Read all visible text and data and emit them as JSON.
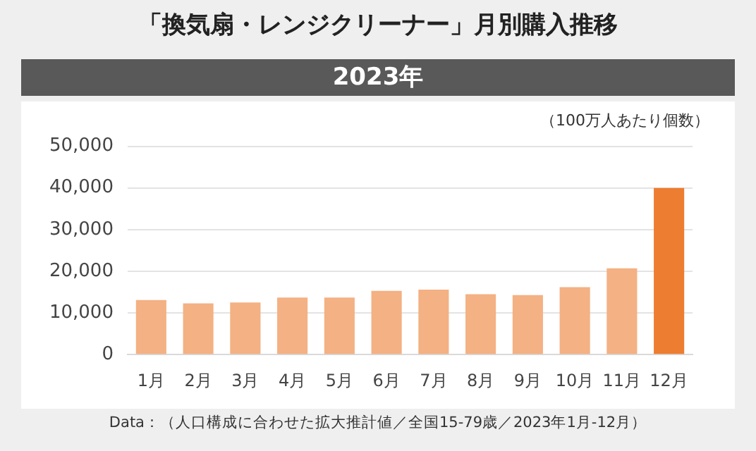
{
  "chart_data": {
    "type": "bar",
    "title": "「換気扇・レンジクリーナー」月別購入推移",
    "subtitle": "2023年",
    "ylabel": "（100万人あたり個数）",
    "categories": [
      "1月",
      "2月",
      "3月",
      "4月",
      "5月",
      "6月",
      "7月",
      "8月",
      "9月",
      "10月",
      "11月",
      "12月"
    ],
    "values": [
      13100,
      12300,
      12500,
      13700,
      13700,
      15300,
      15600,
      14500,
      14300,
      16200,
      20700,
      40000
    ],
    "colors": [
      "#f4b183",
      "#f4b183",
      "#f4b183",
      "#f4b183",
      "#f4b183",
      "#f4b183",
      "#f4b183",
      "#f4b183",
      "#f4b183",
      "#f4b183",
      "#f4b183",
      "#ed7d31"
    ],
    "ylim": [
      0,
      50000
    ],
    "yticks": [
      0,
      {
        "value": 10000,
        "label": "10,000"
      },
      {
        "value": 20000,
        "label": "20,000"
      },
      {
        "value": 30000,
        "label": "30,000"
      },
      {
        "value": 40000,
        "label": "40,000"
      },
      {
        "value": 50000,
        "label": "50,000"
      }
    ],
    "grid": "y",
    "annotations": [
      "Data：（人口構成に合わせた拡大推計値／全国15-79歳／2023年1月-12月）"
    ]
  }
}
